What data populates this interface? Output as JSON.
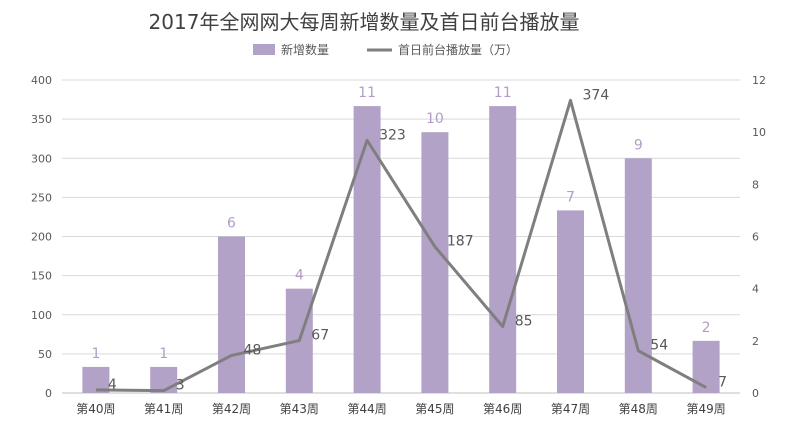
{
  "chart_data": {
    "type": "bar+line",
    "title": "2017年全网网大每周新增数量及首日前台播放量",
    "categories": [
      "第40周",
      "第41周",
      "第42周",
      "第43周",
      "第44周",
      "第45周",
      "第46周",
      "第47周",
      "第48周",
      "第49周"
    ],
    "series": [
      {
        "name": "新增数量",
        "type": "bar",
        "axis": "right",
        "values": [
          1,
          1,
          6,
          4,
          11,
          10,
          11,
          7,
          9,
          2
        ],
        "color": "#b3a2c7"
      },
      {
        "name": "首日前台播放量（万）",
        "type": "line",
        "axis": "left",
        "values": [
          4,
          3,
          48,
          67,
          323,
          187,
          85,
          374,
          54,
          7
        ],
        "color": "#7f7f7f"
      }
    ],
    "left_axis": {
      "min": 0,
      "max": 400,
      "ticks": [
        0,
        50,
        100,
        150,
        200,
        250,
        300,
        350,
        400
      ]
    },
    "right_axis": {
      "min": 0,
      "max": 12,
      "ticks": [
        0,
        2,
        4,
        6,
        8,
        10,
        12
      ]
    },
    "legend_position": "top-center"
  }
}
